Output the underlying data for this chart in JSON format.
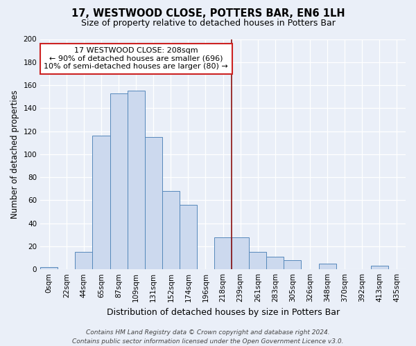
{
  "title": "17, WESTWOOD CLOSE, POTTERS BAR, EN6 1LH",
  "subtitle": "Size of property relative to detached houses in Potters Bar",
  "xlabel": "Distribution of detached houses by size in Potters Bar",
  "ylabel": "Number of detached properties",
  "bin_labels": [
    "0sqm",
    "22sqm",
    "44sqm",
    "65sqm",
    "87sqm",
    "109sqm",
    "131sqm",
    "152sqm",
    "174sqm",
    "196sqm",
    "218sqm",
    "239sqm",
    "261sqm",
    "283sqm",
    "305sqm",
    "326sqm",
    "348sqm",
    "370sqm",
    "392sqm",
    "413sqm",
    "435sqm"
  ],
  "bar_heights": [
    2,
    0,
    15,
    116,
    153,
    155,
    115,
    68,
    56,
    0,
    28,
    28,
    15,
    11,
    8,
    0,
    5,
    0,
    0,
    3,
    0
  ],
  "bar_color": "#ccd9ee",
  "bar_edge_color": "#5588bb",
  "background_color": "#eaeff8",
  "grid_color": "#ffffff",
  "vline_x": 10.5,
  "vline_color": "#8b1010",
  "annotation_line1": "17 WESTWOOD CLOSE: 208sqm",
  "annotation_line2": "← 90% of detached houses are smaller (696)",
  "annotation_line3": "10% of semi-detached houses are larger (80) →",
  "annotation_box_color": "#ffffff",
  "annotation_box_edge_color": "#cc2222",
  "ylim": [
    0,
    200
  ],
  "yticks": [
    0,
    20,
    40,
    60,
    80,
    100,
    120,
    140,
    160,
    180,
    200
  ],
  "footer_text": "Contains HM Land Registry data © Crown copyright and database right 2024.\nContains public sector information licensed under the Open Government Licence v3.0.",
  "title_fontsize": 10.5,
  "subtitle_fontsize": 9,
  "xlabel_fontsize": 9,
  "ylabel_fontsize": 8.5,
  "tick_fontsize": 7.5,
  "annotation_fontsize": 8,
  "footer_fontsize": 6.5
}
